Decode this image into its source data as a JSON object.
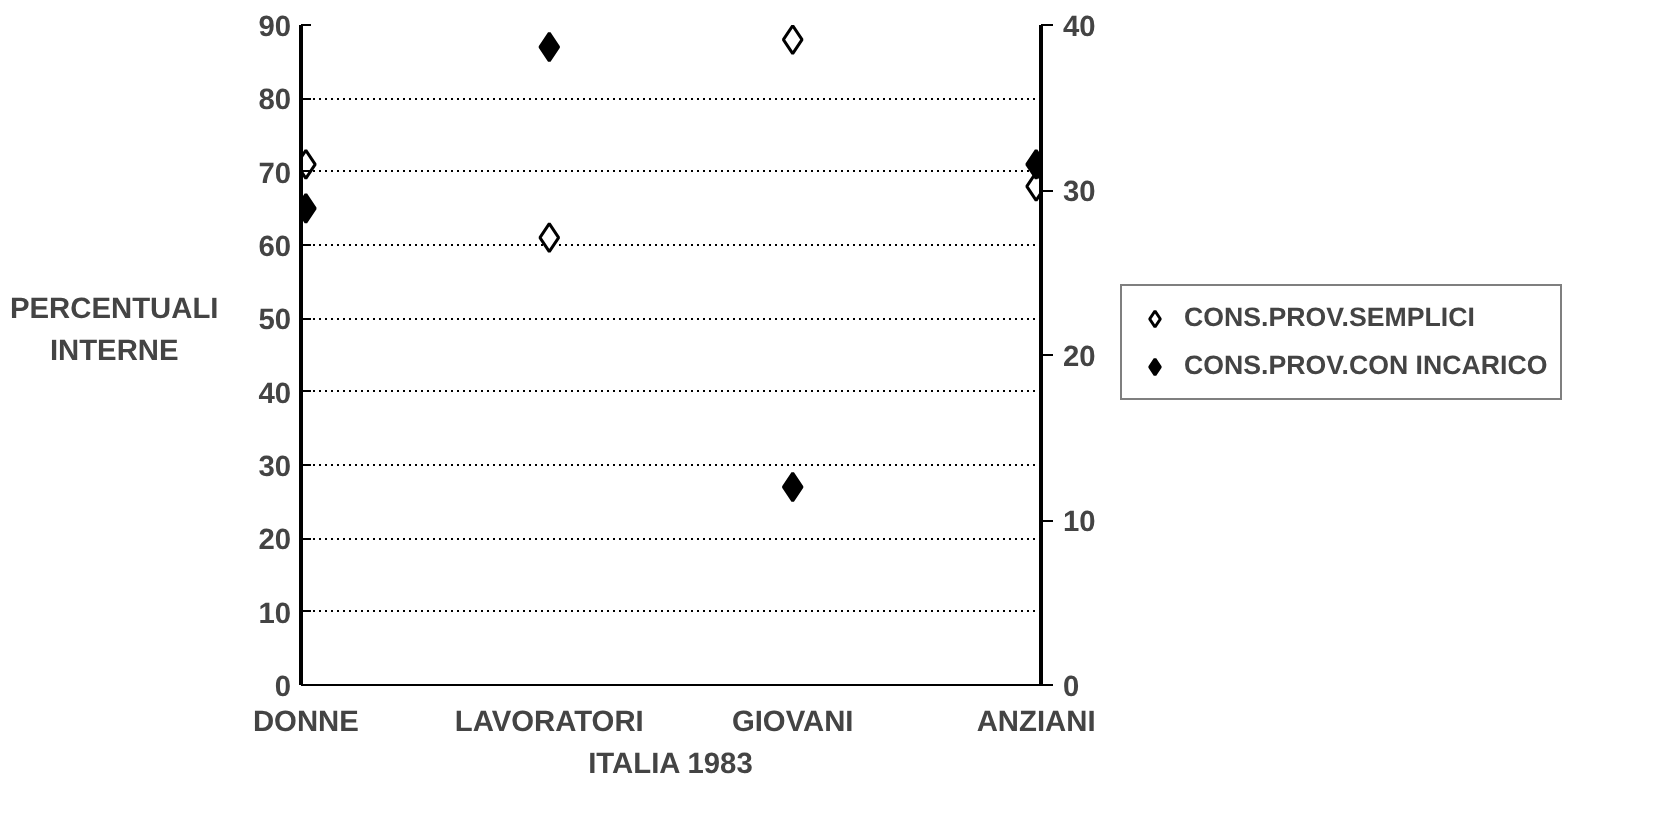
{
  "chart_data": {
    "type": "scatter",
    "xlabel": "ITALIA 1983",
    "ylabel": "PERCENTUALI INTERNE",
    "categories": [
      "DONNE",
      "LAVORATORI",
      "GIOVANI",
      "ANZIANI"
    ],
    "series": [
      {
        "name": "CONS.PROV.SEMPLICI",
        "color": "#ffffff",
        "values": [
          71,
          61,
          88,
          68
        ]
      },
      {
        "name": "CONS.PROV.CON INCARICO",
        "color": "#000000",
        "values": [
          65,
          87,
          27,
          71
        ]
      }
    ],
    "ylim": [
      0,
      90
    ],
    "yticks": [
      0,
      10,
      20,
      30,
      40,
      50,
      60,
      70,
      80,
      90
    ],
    "y2lim": [
      0,
      40
    ],
    "y2ticks": [
      0,
      10,
      20,
      30,
      40
    ],
    "grid": "y",
    "legend": "right",
    "marker": "diamond"
  }
}
